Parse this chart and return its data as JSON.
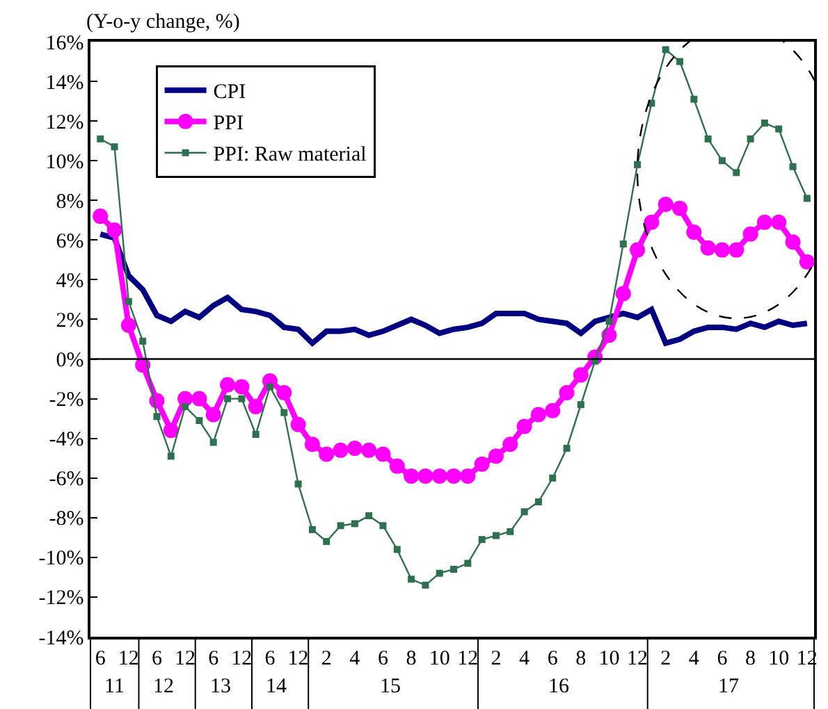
{
  "chart_data": {
    "type": "line",
    "ylabel": "(Y-o-y change, %)",
    "categories": [
      "6",
      null,
      "12",
      null,
      "6",
      null,
      "12",
      null,
      "6",
      null,
      "12",
      null,
      "6",
      null,
      "12",
      null,
      "2",
      null,
      "4",
      null,
      "6",
      null,
      "8",
      null,
      "10",
      null,
      "12",
      null,
      "2",
      null,
      "4",
      null,
      "6",
      null,
      "8",
      null,
      "10",
      null,
      "12",
      null,
      "2",
      null,
      "4",
      null,
      "6",
      null,
      "8",
      null,
      "10",
      null,
      "12"
    ],
    "annotations": [
      "11",
      "12",
      "13",
      "14",
      "15",
      "16",
      "17"
    ],
    "series": [
      {
        "name": "CPI",
        "color": "#000080",
        "marker": "none",
        "values": [
          6.3,
          6.1,
          4.2,
          3.5,
          2.2,
          1.9,
          2.4,
          2.1,
          2.7,
          3.1,
          2.5,
          2.4,
          2.2,
          1.6,
          1.5,
          0.8,
          1.4,
          1.4,
          1.5,
          1.2,
          1.4,
          1.7,
          2.0,
          1.7,
          1.3,
          1.5,
          1.6,
          1.8,
          2.3,
          2.3,
          2.3,
          2.0,
          1.9,
          1.8,
          1.3,
          1.9,
          2.1,
          2.3,
          2.1,
          2.5,
          0.8,
          1.0,
          1.4,
          1.6,
          1.6,
          1.5,
          1.8,
          1.6,
          1.9,
          1.7,
          1.8
        ]
      },
      {
        "name": "PPI",
        "color": "#ff00ff",
        "marker": "circle",
        "values": [
          7.2,
          6.5,
          1.7,
          -0.3,
          -2.1,
          -3.6,
          -2.0,
          -2.0,
          -2.8,
          -1.3,
          -1.4,
          -2.4,
          -1.1,
          -1.7,
          -3.3,
          -4.3,
          -4.8,
          -4.6,
          -4.5,
          -4.6,
          -4.8,
          -5.4,
          -5.9,
          -5.9,
          -5.9,
          -5.9,
          -5.9,
          -5.3,
          -4.9,
          -4.3,
          -3.4,
          -2.8,
          -2.6,
          -1.7,
          -0.8,
          0.1,
          1.2,
          3.3,
          5.5,
          6.9,
          7.8,
          7.6,
          6.4,
          5.6,
          5.5,
          5.5,
          6.3,
          6.9,
          6.9,
          5.9,
          4.9
        ]
      },
      {
        "name": "PPI: Raw material",
        "color": "#2e7050",
        "marker": "square",
        "values": [
          11.1,
          10.7,
          2.9,
          0.9,
          -2.9,
          -4.9,
          -2.4,
          -3.1,
          -4.2,
          -2.0,
          -2.0,
          -3.8,
          -1.4,
          -2.7,
          -6.3,
          -8.6,
          -9.2,
          -8.4,
          -8.3,
          -7.9,
          -8.4,
          -9.6,
          -11.1,
          -11.4,
          -10.8,
          -10.6,
          -10.3,
          -9.1,
          -8.9,
          -8.7,
          -7.7,
          -7.2,
          -6.0,
          -4.5,
          -2.3,
          -0.1,
          1.9,
          5.8,
          9.8,
          12.9,
          15.6,
          15.0,
          13.1,
          11.1,
          10.0,
          9.4,
          11.1,
          11.9,
          11.6,
          9.7,
          8.1
        ]
      }
    ],
    "ylim": [
      -14,
      16
    ],
    "yticks": [
      {
        "value": -14,
        "label": "-14%"
      },
      {
        "value": -12,
        "label": "-12%"
      },
      {
        "value": -10,
        "label": "-10%"
      },
      {
        "value": -8,
        "label": "-8%"
      },
      {
        "value": -6,
        "label": "-6%"
      },
      {
        "value": -4,
        "label": "-4%"
      },
      {
        "value": -2,
        "label": "-2%"
      },
      {
        "value": 0,
        "label": "0%"
      },
      {
        "value": 2,
        "label": "2%"
      },
      {
        "value": 4,
        "label": "4%"
      },
      {
        "value": 6,
        "label": "6%"
      },
      {
        "value": 8,
        "label": "8%"
      },
      {
        "value": 10,
        "label": "10%"
      },
      {
        "value": 12,
        "label": "12%"
      },
      {
        "value": 14,
        "label": "14%"
      },
      {
        "value": 16,
        "label": "16%"
      }
    ],
    "ref_lines": [
      {
        "axis": "y",
        "value": 0,
        "color": "#000000"
      }
    ],
    "legend": "top left"
  }
}
